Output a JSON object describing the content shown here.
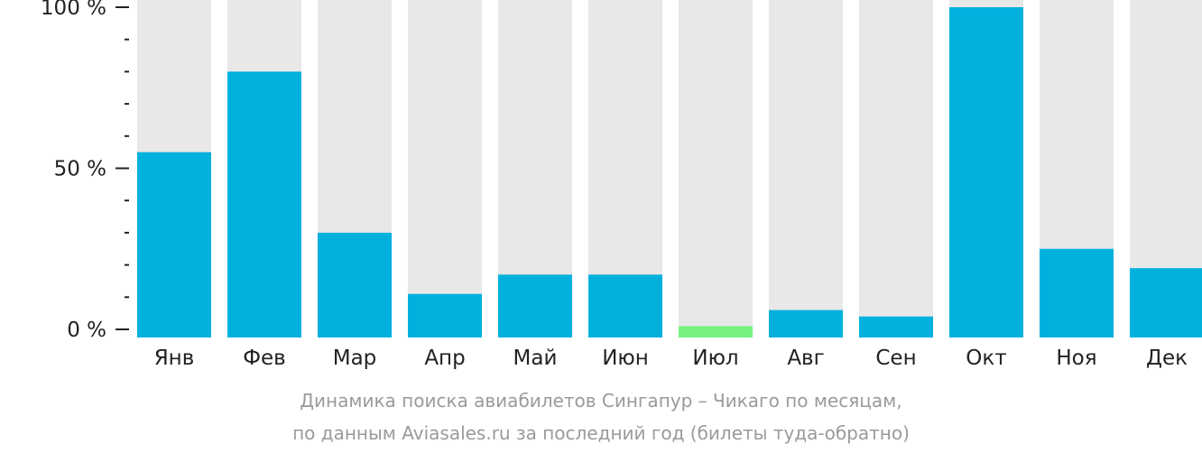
{
  "chart_data": {
    "type": "bar",
    "categories": [
      "Янв",
      "Фев",
      "Мар",
      "Апр",
      "Май",
      "Июн",
      "Июл",
      "Авг",
      "Сен",
      "Окт",
      "Ноя",
      "Дек"
    ],
    "values": [
      55,
      80,
      30,
      11,
      17,
      17,
      1,
      6,
      4,
      100,
      25,
      19
    ],
    "highlight_index": 6,
    "ylim": [
      0,
      100
    ],
    "yticks": [
      {
        "value": 0,
        "label": "0 %"
      },
      {
        "value": 50,
        "label": "50 %"
      },
      {
        "value": 100,
        "label": "100 %"
      }
    ],
    "minor_tick_step": 10,
    "xlabel": "",
    "ylabel": "",
    "colors": {
      "bar": "#00b1de",
      "highlight": "#77f281",
      "track": "#e8e8e8",
      "axis": "#222222",
      "tick_label": "#222222",
      "caption": "#9a9a9a"
    }
  },
  "caption": {
    "line1": "Динамика поиска авиабилетов Сингапур – Чикаго по месяцам,",
    "line2": "по данным Aviasales.ru за последний год (билеты туда-обратно)"
  }
}
